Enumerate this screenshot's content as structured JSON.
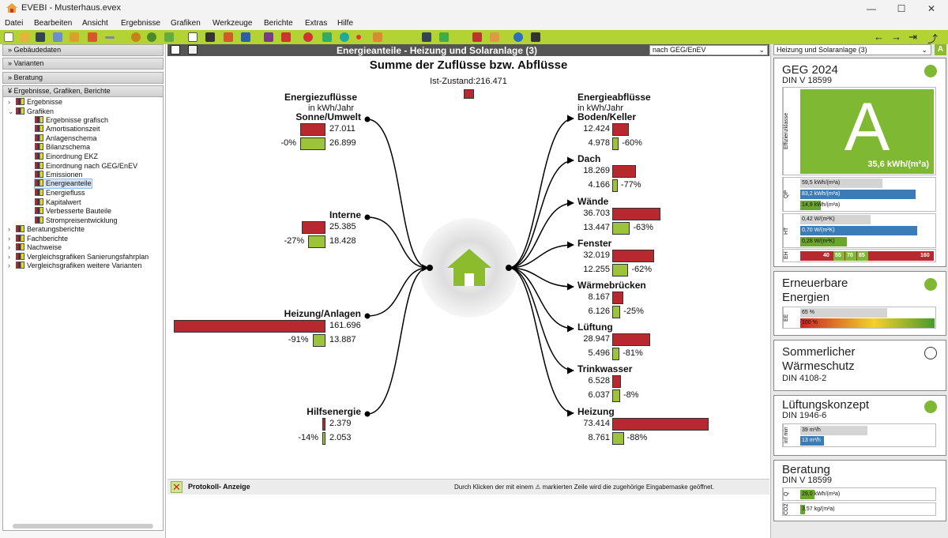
{
  "window": {
    "title": "EVEBI - Musterhaus.evex"
  },
  "menu": [
    "Datei",
    "Bearbeiten",
    "Ansicht",
    "Ergebnisse",
    "Grafiken",
    "Werkzeuge",
    "Berichte",
    "Extras",
    "Hilfe"
  ],
  "sidebar": {
    "sections": [
      "Gebäudedaten",
      "Varianten",
      "Beratung",
      "Ergebnisse, Grafiken, Berichte"
    ],
    "tree": [
      "Ergebnisse",
      "Grafiken",
      "Ergebnisse grafisch",
      "Amortisationszeit",
      "Anlagenschema",
      "Bilanzschema",
      "Einordnung EKZ",
      "Einordnung nach GEG/EnEV",
      "Emissionen",
      "Energieanteile",
      "Energiefluss",
      "Kapitalwert",
      "Verbesserte Bauteile",
      "Strompreisentwicklung",
      "Beratungsberichte",
      "Fachberichte",
      "Nachweise",
      "Vergleichsgrafiken Sanierungsfahrplan",
      "Vergleichsgrafiken weitere Varianten"
    ]
  },
  "header": {
    "title": "Energieanteile - Heizung und Solaranlage (3)",
    "select": "nach GEG/EnEV"
  },
  "chart": {
    "title": "Summe der Zuflüsse bzw. Abflüsse",
    "subtitle": "Ist-Zustand:216.471",
    "in_title": "Energiezuflüsse",
    "in_unit": "in kWh/Jahr",
    "out_title": "Energieabflüsse",
    "out_unit": "in kWh/Jahr"
  },
  "chart_data": {
    "type": "bar",
    "unit": "kWh/Jahr",
    "inflows": [
      {
        "name": "Sonne/Umwelt",
        "ist": "27.011",
        "neu": "26.899",
        "change": "-0%"
      },
      {
        "name": "Interne",
        "ist": "25.385",
        "neu": "18.428",
        "change": "-27%"
      },
      {
        "name": "Heizung/Anlagen",
        "ist": "161.696",
        "neu": "13.887",
        "change": "-91%"
      },
      {
        "name": "Hilfsenergie",
        "ist": "2.379",
        "neu": "2.053",
        "change": "-14%"
      }
    ],
    "outflows": [
      {
        "name": "Boden/Keller",
        "ist": "12.424",
        "neu": "4.978",
        "change": "-60%"
      },
      {
        "name": "Dach",
        "ist": "18.269",
        "neu": "4.166",
        "change": "-77%"
      },
      {
        "name": "Wände",
        "ist": "36.703",
        "neu": "13.447",
        "change": "-63%"
      },
      {
        "name": "Fenster",
        "ist": "32.019",
        "neu": "12.255",
        "change": "-62%"
      },
      {
        "name": "Wärmebrücken",
        "ist": "8.167",
        "neu": "6.126",
        "change": "-25%"
      },
      {
        "name": "Lüftung",
        "ist": "28.947",
        "neu": "5.496",
        "change": "-81%"
      },
      {
        "name": "Trinkwasser",
        "ist": "6.528",
        "neu": "6.037",
        "change": "-8%"
      },
      {
        "name": "Heizung",
        "ist": "73.414",
        "neu": "8.761",
        "change": "-88%"
      }
    ],
    "bar_values_in": [
      [
        27011,
        26899
      ],
      [
        25385,
        18428
      ],
      [
        161696,
        13887
      ],
      [
        2379,
        2053
      ]
    ],
    "bar_values_out": [
      [
        12424,
        4978
      ],
      [
        18269,
        4166
      ],
      [
        36703,
        13447
      ],
      [
        32019,
        12255
      ],
      [
        8167,
        6126
      ],
      [
        28947,
        5496
      ],
      [
        6528,
        6037
      ],
      [
        73414,
        8761
      ]
    ],
    "colors": {
      "ist": "#b8292f",
      "neu": "#9cc33a"
    }
  },
  "protocol": {
    "label": "Protokoll- Anzeige",
    "hint": "Durch Klicken der mit einem ⚠ markierten Zeile wird die zugehörige Eingabemaske geöffnet."
  },
  "right": {
    "select": "Heizung und Solaranlage (3)",
    "geg": {
      "title": "GEG 2024",
      "sub": "DIN V 18599",
      "grade": "A",
      "value": "35,6 kWh/(m²a)",
      "side_label": "Effizienzklasse",
      "qp": [
        "59,5 kWh/(m²a)",
        "83,2 kWh/(m²a)",
        "14,9 kWh/(m²a)"
      ],
      "qp_label": "QP",
      "ht": [
        "0,42 W/(m²K)",
        "0,70 W/(m²K)",
        "0,28 W/(m²K)"
      ],
      "ht_label": "HT",
      "eh_label": "EH",
      "eh": [
        "40",
        "55",
        "70",
        "85",
        "160"
      ]
    },
    "ee": {
      "title1": "Erneuerbare",
      "title2": "Energien",
      "label": "EE",
      "v1": "65 %",
      "v2": "100 %"
    },
    "sw": {
      "title1": "Sommerlicher",
      "title2": "Wärmeschutz",
      "sub": "DIN 4108-2"
    },
    "lk": {
      "title": "Lüftungskonzept",
      "sub": "DIN 1946-6",
      "label": "inf min",
      "v1": "39 m³/h",
      "v2": "13 m³/h"
    },
    "ber": {
      "title": "Beratung",
      "sub": "DIN V 18599",
      "ql": "Q",
      "q": "29,0 kWh/(m²a)",
      "co2l": "CO2",
      "co2": "3,57 kg/(m²a)"
    }
  }
}
